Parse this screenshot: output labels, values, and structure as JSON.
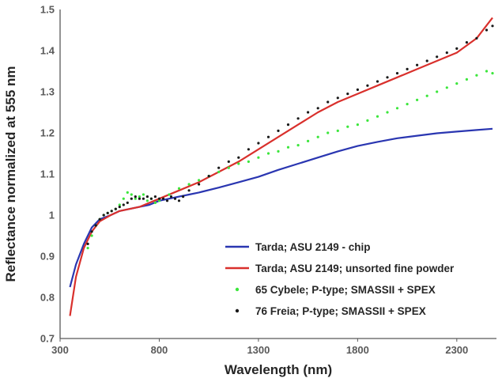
{
  "chart_data": {
    "type": "line",
    "title": "",
    "xlabel": "Wavelength (nm)",
    "ylabel": "Reflectance normalized at 555 nm",
    "xlim": [
      300,
      2500
    ],
    "ylim": [
      0.7,
      1.5
    ],
    "xticks": [
      "300",
      "800",
      "1300",
      "1800",
      "2300"
    ],
    "yticks": [
      "0.7",
      "0.8",
      "0.9",
      "1",
      "1.1",
      "1.2",
      "1.3",
      "1.4",
      "1.5"
    ],
    "grid": false,
    "legend": "bottom-right",
    "series": [
      {
        "name": "Tarda; ASU 2149 - chip",
        "style": "line",
        "color": "#2a36b1",
        "x": [
          350,
          380,
          420,
          460,
          500,
          555,
          600,
          650,
          700,
          750,
          800,
          850,
          900,
          950,
          1000,
          1100,
          1200,
          1300,
          1400,
          1500,
          1600,
          1700,
          1800,
          1900,
          2000,
          2100,
          2200,
          2300,
          2400,
          2480
        ],
        "y": [
          0.825,
          0.88,
          0.93,
          0.97,
          0.99,
          1.0,
          1.01,
          1.015,
          1.02,
          1.025,
          1.035,
          1.04,
          1.045,
          1.05,
          1.055,
          1.067,
          1.08,
          1.093,
          1.11,
          1.125,
          1.14,
          1.155,
          1.168,
          1.178,
          1.187,
          1.193,
          1.199,
          1.203,
          1.207,
          1.21
        ]
      },
      {
        "name": "Tarda; ASU 2149; unsorted fine powder",
        "style": "line",
        "color": "#d9302c",
        "x": [
          350,
          380,
          420,
          460,
          500,
          555,
          600,
          700,
          800,
          900,
          1000,
          1100,
          1200,
          1300,
          1400,
          1500,
          1600,
          1700,
          1800,
          1900,
          2000,
          2100,
          2200,
          2300,
          2400,
          2480
        ],
        "y": [
          0.755,
          0.85,
          0.92,
          0.96,
          0.985,
          1.0,
          1.01,
          1.02,
          1.04,
          1.06,
          1.08,
          1.105,
          1.13,
          1.16,
          1.19,
          1.22,
          1.25,
          1.275,
          1.295,
          1.315,
          1.335,
          1.355,
          1.375,
          1.395,
          1.43,
          1.48
        ]
      },
      {
        "name": "65 Cybele; P-type; SMASSII + SPEX",
        "style": "points",
        "color": "#3ce63c",
        "x": [
          440,
          460,
          480,
          500,
          520,
          540,
          560,
          580,
          600,
          620,
          640,
          660,
          680,
          700,
          720,
          740,
          760,
          780,
          800,
          850,
          900,
          950,
          1000,
          1050,
          1100,
          1150,
          1200,
          1250,
          1300,
          1350,
          1400,
          1450,
          1500,
          1550,
          1600,
          1650,
          1700,
          1750,
          1800,
          1850,
          1900,
          1950,
          2000,
          2050,
          2100,
          2150,
          2200,
          2250,
          2300,
          2350,
          2400,
          2450,
          2480
        ],
        "y": [
          0.92,
          0.95,
          0.975,
          0.99,
          1.0,
          1.005,
          1.01,
          1.015,
          1.025,
          1.04,
          1.055,
          1.05,
          1.04,
          1.045,
          1.05,
          1.035,
          1.04,
          1.03,
          1.035,
          1.05,
          1.065,
          1.075,
          1.085,
          1.095,
          1.105,
          1.115,
          1.125,
          1.13,
          1.14,
          1.15,
          1.155,
          1.165,
          1.17,
          1.18,
          1.19,
          1.2,
          1.205,
          1.215,
          1.22,
          1.23,
          1.24,
          1.25,
          1.26,
          1.27,
          1.28,
          1.29,
          1.3,
          1.31,
          1.32,
          1.33,
          1.34,
          1.35,
          1.345
        ]
      },
      {
        "name": "76 Freia; P-type; SMASSII + SPEX",
        "style": "points",
        "color": "#1a1a1a",
        "x": [
          440,
          460,
          480,
          500,
          520,
          540,
          560,
          580,
          600,
          620,
          640,
          660,
          680,
          700,
          720,
          740,
          760,
          780,
          800,
          820,
          840,
          860,
          880,
          900,
          920,
          950,
          1000,
          1050,
          1100,
          1150,
          1200,
          1250,
          1300,
          1350,
          1400,
          1450,
          1500,
          1550,
          1600,
          1650,
          1700,
          1750,
          1800,
          1850,
          1900,
          1950,
          2000,
          2050,
          2100,
          2150,
          2200,
          2250,
          2300,
          2350,
          2400,
          2450,
          2480
        ],
        "y": [
          0.93,
          0.96,
          0.975,
          0.99,
          1.0,
          1.005,
          1.01,
          1.015,
          1.02,
          1.025,
          1.03,
          1.04,
          1.045,
          1.04,
          1.04,
          1.045,
          1.04,
          1.045,
          1.04,
          1.04,
          1.035,
          1.045,
          1.04,
          1.035,
          1.045,
          1.06,
          1.075,
          1.095,
          1.115,
          1.13,
          1.14,
          1.16,
          1.175,
          1.19,
          1.205,
          1.22,
          1.235,
          1.25,
          1.26,
          1.275,
          1.285,
          1.295,
          1.305,
          1.315,
          1.325,
          1.335,
          1.345,
          1.355,
          1.365,
          1.375,
          1.385,
          1.395,
          1.405,
          1.42,
          1.43,
          1.45,
          1.46
        ]
      }
    ]
  }
}
